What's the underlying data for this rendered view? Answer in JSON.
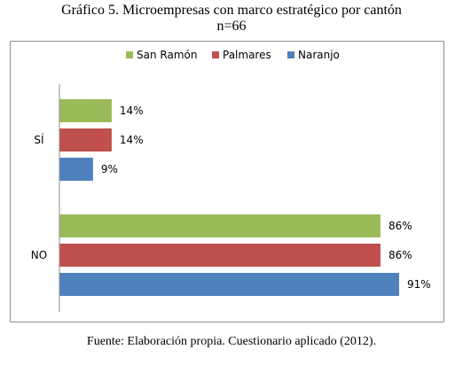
{
  "title_line1": "Gráfico 5. Microempresas con marco estratégico por cantón",
  "title_line2": "n=66",
  "source": "Fuente: Elaboración propia. Cuestionario aplicado (2012).",
  "chart_data": {
    "type": "bar",
    "orientation": "horizontal",
    "categories": [
      "SÍ",
      "NO"
    ],
    "series": [
      {
        "name": "San Ramón",
        "color": "#9bbb59",
        "values": [
          14,
          86
        ],
        "labels": [
          "14%",
          "86%"
        ]
      },
      {
        "name": "Palmares",
        "color": "#c0504d",
        "values": [
          14,
          86
        ],
        "labels": [
          "14%",
          "86%"
        ]
      },
      {
        "name": "Naranjo",
        "color": "#4f81bd",
        "values": [
          9,
          91
        ],
        "labels": [
          "9%",
          "91%"
        ]
      }
    ],
    "value_unit": "%",
    "xlim": [
      0,
      100
    ],
    "legend_position": "top",
    "grid": false
  }
}
